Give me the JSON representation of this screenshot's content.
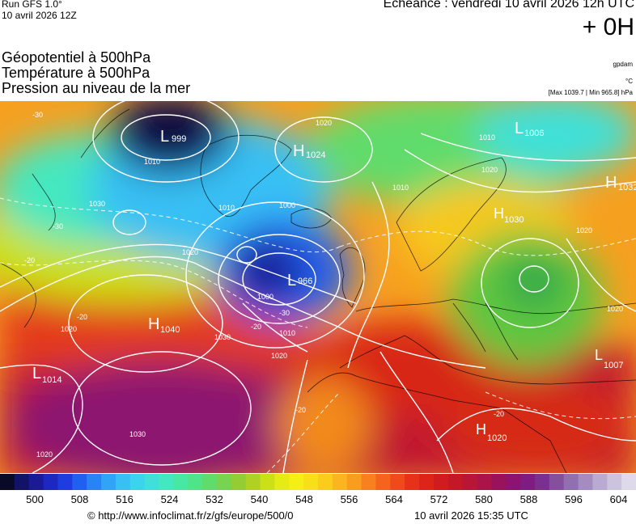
{
  "header": {
    "run": "Run GFS 1.0°",
    "run_date": "10 avril 2026 12Z",
    "echeance": "Echéance : vendredi 10 avril 2026 12h UTC",
    "offset": "+ 0H"
  },
  "titles": [
    "Géopotentiel à 500hPa",
    "Température à 500hPa",
    "Pression au niveau de la mer"
  ],
  "units": {
    "geopotential": "gpdam",
    "temperature": "°C",
    "pressure_range": "[Max 1039.7 | Min 965.8] hPa"
  },
  "pressure_centers": [
    {
      "type": "L",
      "value": "999"
    },
    {
      "type": "H",
      "value": "1024"
    },
    {
      "type": "L",
      "value": "1006"
    },
    {
      "type": "H",
      "value": "1032"
    },
    {
      "type": "H",
      "value": "1030"
    },
    {
      "type": "L",
      "value": "966"
    },
    {
      "type": "H",
      "value": "1040"
    },
    {
      "type": "L",
      "value": "1014"
    },
    {
      "type": "L",
      "value": "1007"
    },
    {
      "type": "H",
      "value": "1020"
    }
  ],
  "isobar_labels": [
    "1010",
    "1020",
    "1030",
    "1000",
    "1010",
    "1020",
    "1020",
    "1010",
    "1030",
    "1010",
    "1020",
    "1000",
    "1010",
    "1020",
    "1030",
    "1020",
    "1020",
    "1020"
  ],
  "temperature_labels": [
    "-30",
    "-30",
    "-20",
    "-30",
    "-20",
    "-20",
    "-20",
    "-20"
  ],
  "scale": {
    "colors": [
      "#0a0a28",
      "#121268",
      "#1a1a96",
      "#1c28c0",
      "#1e3ce0",
      "#2060f0",
      "#2884f4",
      "#30a4f6",
      "#38c0f4",
      "#3cd4ec",
      "#40e0d8",
      "#44e8c0",
      "#48e8a4",
      "#50e488",
      "#60dc6c",
      "#78d450",
      "#94cc34",
      "#b0d024",
      "#cce018",
      "#e4ec14",
      "#f4f014",
      "#f8e018",
      "#fccc1c",
      "#fcb420",
      "#fa9c20",
      "#f8801e",
      "#f4641c",
      "#ee4a1a",
      "#e63218",
      "#dc2418",
      "#d01c1e",
      "#c41828",
      "#b81636",
      "#aa1448",
      "#9a125c",
      "#8c1470",
      "#7e1c82",
      "#7a3090",
      "#84509e",
      "#9070ae",
      "#a48cc0",
      "#b8aad0",
      "#ccc4de",
      "#dedaea"
    ],
    "tick_labels": [
      "500",
      "508",
      "516",
      "524",
      "532",
      "540",
      "548",
      "556",
      "564",
      "572",
      "580",
      "588",
      "596",
      "604"
    ]
  },
  "footer": {
    "credit": "© http://www.infoclimat.fr/z/gfs/europe/500/0",
    "generated": "10 avril 2026 15:35 UTC"
  }
}
